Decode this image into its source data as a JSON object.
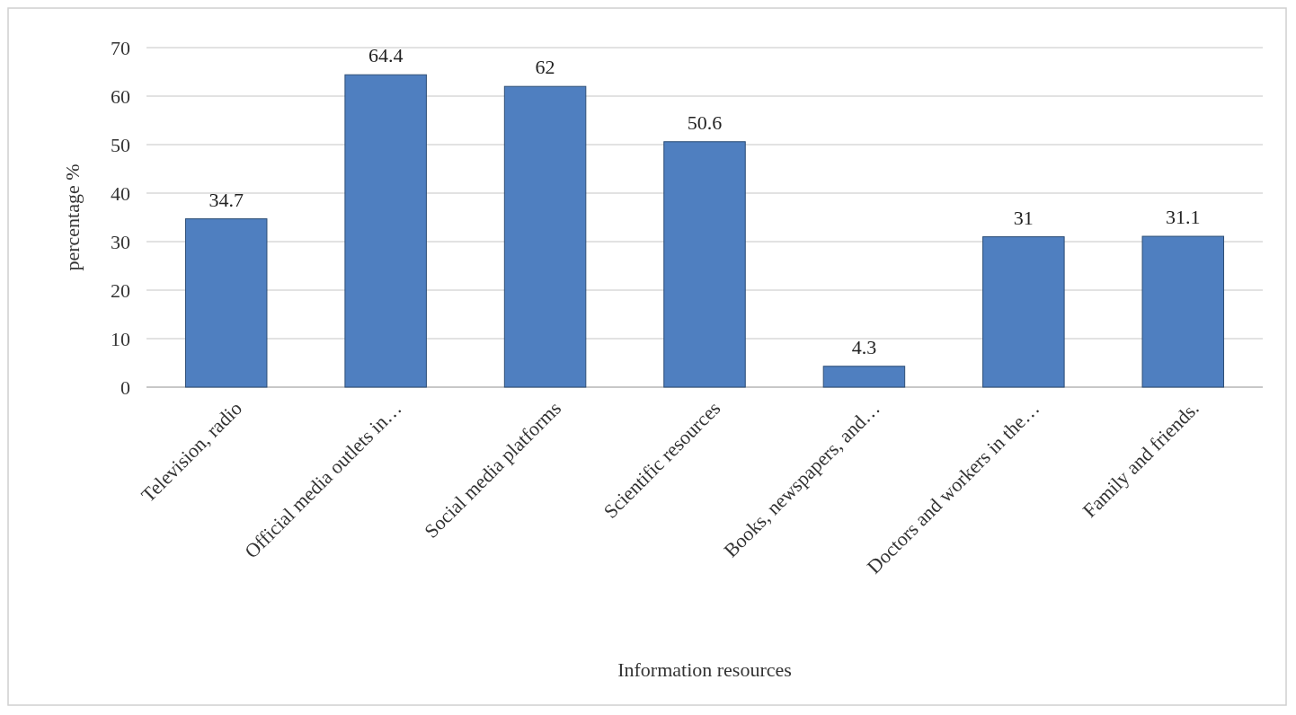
{
  "chart_data": {
    "type": "bar",
    "xlabel": "Information resources",
    "ylabel": "percentage %",
    "categories": [
      "Television, radio",
      "Official media outlets in…",
      "Social media platforms",
      "Scientific resources",
      "Books, newspapers, and…",
      "Doctors and workers in the…",
      "Family and friends."
    ],
    "values": [
      34.7,
      64.4,
      62,
      50.6,
      4.3,
      31,
      31.1
    ],
    "color": "#4f7fc0",
    "ylim": [
      0,
      70
    ],
    "yticks": [
      0,
      10,
      20,
      30,
      40,
      50,
      60,
      70
    ],
    "grid": "y",
    "data_labels": true
  }
}
